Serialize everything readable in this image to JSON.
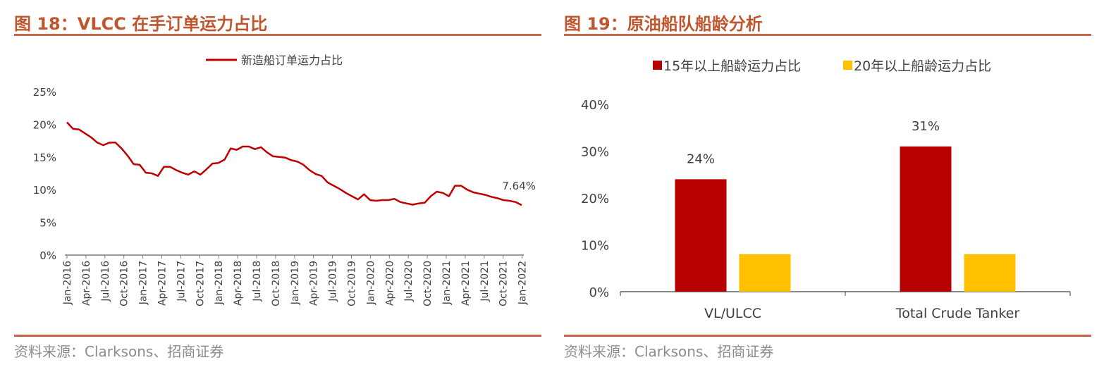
{
  "left": {
    "title": "图 18：VLCC 在手订单运力占比",
    "source": "资料来源：Clarksons、招商证券",
    "chart_data": {
      "type": "line",
      "title": "",
      "ylim": [
        0,
        25
      ],
      "yticks": [
        "0%",
        "5%",
        "10%",
        "15%",
        "20%",
        "25%"
      ],
      "legend_position": "top-center",
      "grid": false,
      "x_labels": [
        "Jan-2016",
        "Apr-2016",
        "Jul-2016",
        "Oct-2016",
        "Jan-2017",
        "Apr-2017",
        "Jul-2017",
        "Oct-2017",
        "Jan-2018",
        "Apr-2018",
        "Jul-2018",
        "Oct-2018",
        "Jan-2019",
        "Apr-2019",
        "Jul-2019",
        "Oct-2019",
        "Jan-2020",
        "Apr-2020",
        "Jul-2020",
        "Oct-2020",
        "Jan-2021",
        "Apr-2021",
        "Jul-2021",
        "Oct-2021",
        "Jan-2022"
      ],
      "series": [
        {
          "name": "新造船订单运力占比",
          "color": "#c00000",
          "values": [
            20.3,
            19.3,
            19.2,
            18.6,
            18.0,
            17.2,
            16.8,
            17.2,
            17.2,
            16.3,
            15.2,
            13.9,
            13.8,
            12.6,
            12.5,
            12.1,
            13.5,
            13.5,
            13.0,
            12.6,
            12.3,
            12.8,
            12.3,
            13.1,
            14.0,
            14.1,
            14.6,
            16.3,
            16.1,
            16.6,
            16.6,
            16.2,
            16.5,
            15.7,
            15.1,
            15.0,
            14.9,
            14.5,
            14.3,
            13.8,
            13.0,
            12.4,
            12.1,
            11.1,
            10.6,
            10.1,
            9.5,
            9.0,
            8.5,
            9.3,
            8.4,
            8.3,
            8.4,
            8.4,
            8.6,
            8.1,
            7.9,
            7.7,
            7.9,
            8.0,
            9.0,
            9.7,
            9.5,
            9.0,
            10.6,
            10.6,
            10.0,
            9.6,
            9.4,
            9.2,
            8.9,
            8.7,
            8.4,
            8.3,
            8.1,
            7.64
          ]
        }
      ],
      "annotation": "7.64%"
    }
  },
  "right": {
    "title": "图 19：原油船队船龄分析",
    "source": "资料来源：Clarksons、招商证券",
    "chart_data": {
      "type": "bar",
      "title": "",
      "categories": [
        "VL/ULCC",
        "Total Crude Tanker"
      ],
      "ylim": [
        0,
        40
      ],
      "yticks": [
        "0%",
        "10%",
        "20%",
        "30%",
        "40%"
      ],
      "legend_position": "top",
      "grid": false,
      "series": [
        {
          "name": "15年以上船龄运力占比",
          "color": "#b70000",
          "values": [
            24,
            31
          ],
          "labels": [
            "24%",
            "31%"
          ]
        },
        {
          "name": "20年以上船龄运力占比",
          "color": "#ffc000",
          "values": [
            8,
            8
          ],
          "labels": [
            "",
            ""
          ]
        }
      ]
    }
  }
}
